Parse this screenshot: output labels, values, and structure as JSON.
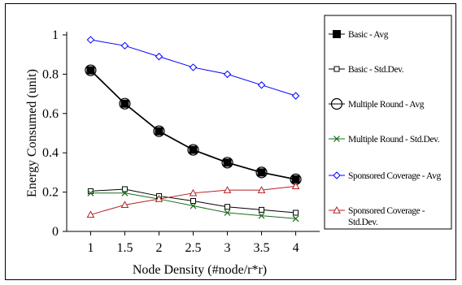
{
  "chart_data": {
    "type": "line",
    "title": "",
    "xlabel": "Node Density (#node/r*r)",
    "ylabel": "Energy Consumed (unit)",
    "x": [
      1,
      1.5,
      2,
      2.5,
      3,
      3.5,
      4
    ],
    "x_tick_labels": [
      "1",
      "1.5",
      "2",
      "2.5",
      "3",
      "3.5",
      "4"
    ],
    "y_tick_labels": [
      "0",
      "0.2",
      "0.4",
      "0.6",
      "0.8",
      "1"
    ],
    "ylim": [
      0,
      1
    ],
    "y_ticks": [
      0,
      0.2,
      0.4,
      0.6,
      0.8,
      1
    ],
    "grid": false,
    "legend_position": "right",
    "series": [
      {
        "name": "Basic - Avg",
        "values": [
          0.82,
          0.65,
          0.51,
          0.415,
          0.35,
          0.3,
          0.265
        ],
        "color": "#000000",
        "marker": "filled-square"
      },
      {
        "name": "Basic - Std.Dev.",
        "values": [
          0.205,
          0.215,
          0.18,
          0.155,
          0.125,
          0.11,
          0.095
        ],
        "color": "#000000",
        "marker": "open-square"
      },
      {
        "name": "Multiple Round - Avg",
        "values": [
          0.82,
          0.65,
          0.51,
          0.415,
          0.35,
          0.3,
          0.265
        ],
        "color": "#000000",
        "marker": "open-circle"
      },
      {
        "name": "Multiple Round - Std.Dev.",
        "values": [
          0.195,
          0.195,
          0.165,
          0.13,
          0.095,
          0.08,
          0.065
        ],
        "color": "#1a6b1a",
        "marker": "x"
      },
      {
        "name": "Sponsored Coverage - Avg",
        "values": [
          0.975,
          0.945,
          0.89,
          0.835,
          0.8,
          0.745,
          0.69
        ],
        "color": "#0000ff",
        "marker": "open-diamond"
      },
      {
        "name": "Sponsored Coverage - Std.Dev.",
        "values": [
          0.085,
          0.135,
          0.165,
          0.195,
          0.21,
          0.21,
          0.23
        ],
        "color": "#b22222",
        "marker": "open-triangle"
      }
    ],
    "legend_lines": [
      [
        "Basic - Avg"
      ],
      [
        "Basic - Std.Dev."
      ],
      [
        "Multiple Round - Avg"
      ],
      [
        "Multiple Round - Std.Dev."
      ],
      [
        "Sponsored Coverage - Avg"
      ],
      [
        "Sponsored Coverage -",
        "Std.Dev."
      ]
    ]
  }
}
